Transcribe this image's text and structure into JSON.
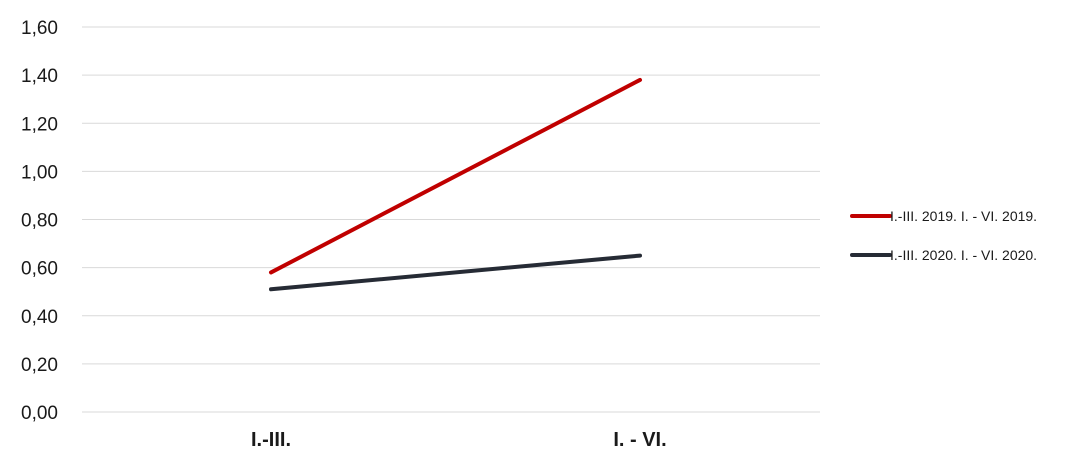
{
  "chart_data": {
    "type": "line",
    "title": "",
    "xlabel": "",
    "ylabel": "",
    "categories": [
      "I.-III.",
      "I. - VI."
    ],
    "series": [
      {
        "name": "I.-III. 2019. I. - VI. 2019.",
        "values": [
          0.58,
          1.38
        ],
        "color": "#c00000"
      },
      {
        "name": "I.-III. 2020. I. - VI. 2020.",
        "values": [
          0.51,
          0.65
        ],
        "color": "#262b35"
      }
    ],
    "ylim": [
      0,
      1.6
    ],
    "yticks": [
      "0,00",
      "0,20",
      "0,40",
      "0,60",
      "0,80",
      "1,00",
      "1,20",
      "1,40",
      "1,60"
    ],
    "grid": true,
    "legend_position": "right"
  }
}
